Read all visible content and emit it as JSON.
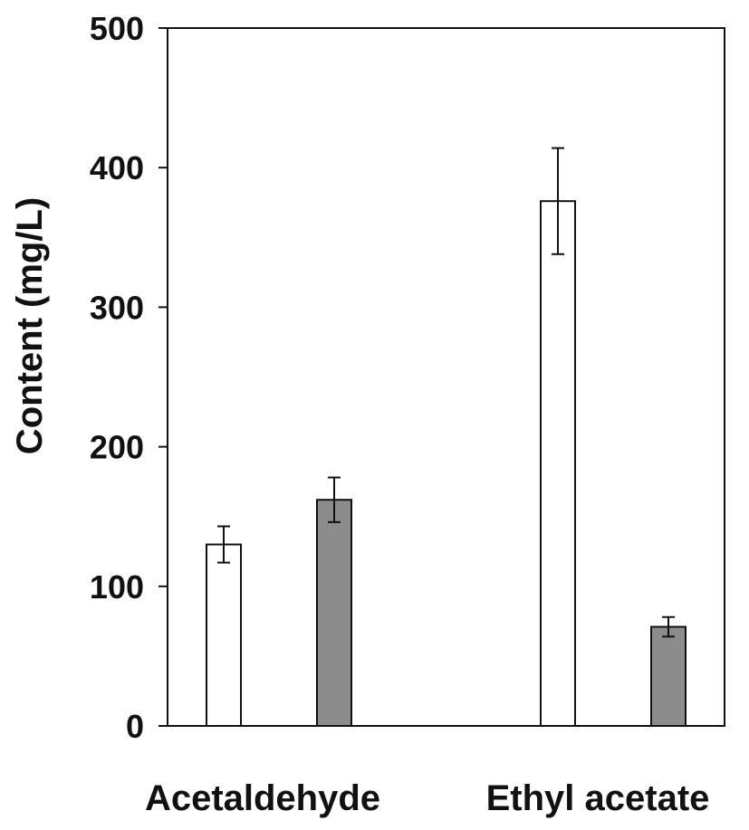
{
  "chart_data": {
    "type": "bar",
    "categories": [
      "Acetaldehyde",
      "Ethyl acetate"
    ],
    "series": [
      {
        "color": "#ffffff",
        "values": [
          130,
          376
        ],
        "errors": [
          13,
          38
        ]
      },
      {
        "color": "#8c8c8c",
        "values": [
          162,
          71
        ],
        "errors": [
          16,
          7
        ]
      }
    ],
    "title": "",
    "xlabel": "",
    "ylabel": "Content (mg/L)",
    "ylim": [
      0,
      500
    ],
    "yticks": [
      "0",
      "100",
      "200",
      "300",
      "400",
      "500"
    ],
    "grid": false,
    "legend": "none"
  }
}
